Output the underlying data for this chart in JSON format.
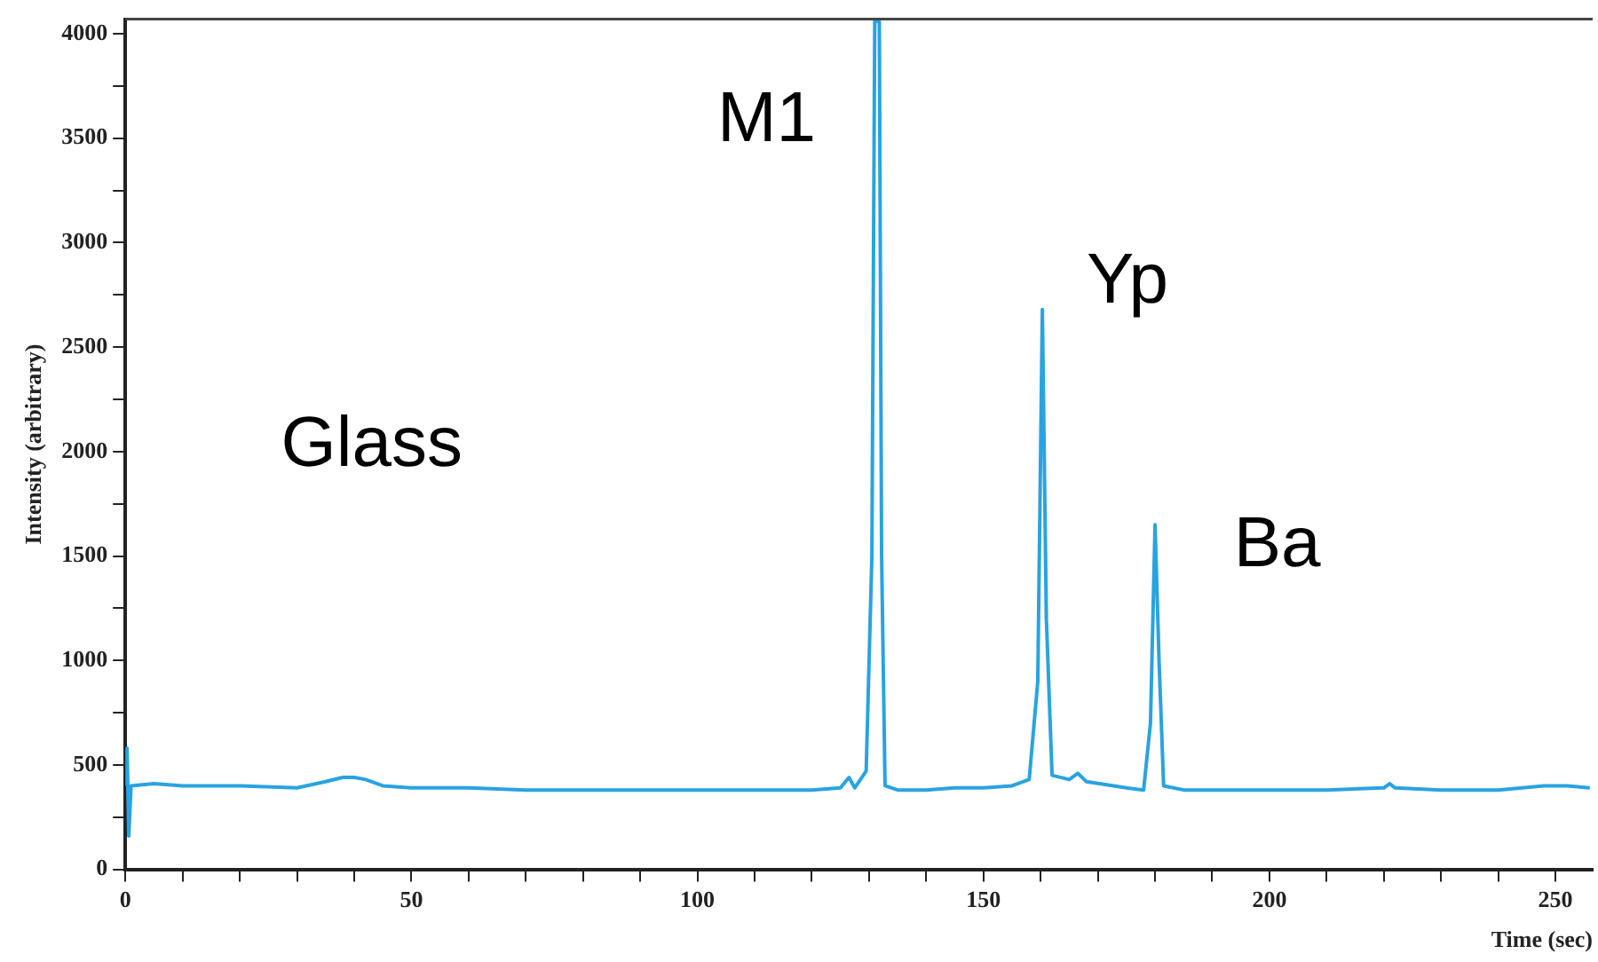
{
  "chart_data": {
    "type": "line",
    "xlabel": "Time (sec)",
    "ylabel": "Intensity (arbitrary)",
    "xlim": [
      0,
      256.5
    ],
    "ylim": [
      0,
      4070
    ],
    "xticks": [
      0,
      {
        "value": 10,
        "label": null
      },
      {
        "value": 20,
        "label": null
      },
      {
        "value": 30,
        "label": null
      },
      {
        "value": 40,
        "label": null
      },
      50,
      {
        "value": 60,
        "label": null
      },
      {
        "value": 70,
        "label": null
      },
      {
        "value": 80,
        "label": null
      },
      {
        "value": 90,
        "label": null
      },
      100,
      {
        "value": 110,
        "label": null
      },
      {
        "value": 120,
        "label": null
      },
      {
        "value": 130,
        "label": null
      },
      {
        "value": 140,
        "label": null
      },
      150,
      {
        "value": 160,
        "label": null
      },
      {
        "value": 170,
        "label": null
      },
      {
        "value": 180,
        "label": null
      },
      {
        "value": 190,
        "label": null
      },
      200,
      {
        "value": 210,
        "label": null
      },
      {
        "value": 220,
        "label": null
      },
      {
        "value": 230,
        "label": null
      },
      {
        "value": 240,
        "label": null
      },
      250
    ],
    "yticks": [
      0,
      {
        "value": 250,
        "label": null
      },
      500,
      {
        "value": 750,
        "label": null
      },
      1000,
      {
        "value": 1250,
        "label": null
      },
      1500,
      {
        "value": 1750,
        "label": null
      },
      2000,
      {
        "value": 2250,
        "label": null
      },
      2500,
      {
        "value": 2750,
        "label": null
      },
      3000,
      {
        "value": 3250,
        "label": null
      },
      3500,
      {
        "value": 3750,
        "label": null
      },
      4000
    ],
    "grid": false,
    "legend": false,
    "marker": "none",
    "line_style": "solid",
    "series": [
      {
        "color": "#29a3e0",
        "x": [
          0,
          0.3,
          0.6,
          1,
          5,
          10,
          20,
          30,
          35,
          38,
          40,
          42,
          45,
          50,
          60,
          70,
          80,
          90,
          100,
          110,
          120,
          125,
          126.5,
          127.5,
          128.5,
          129.5,
          130.5,
          131,
          131.8,
          132.2,
          132.8,
          135,
          140,
          145,
          150,
          155,
          158,
          159.5,
          160.3,
          161,
          162,
          165,
          166.5,
          168,
          175,
          178,
          179.2,
          180,
          180.7,
          181.5,
          185,
          200,
          210,
          220,
          221,
          222,
          230,
          240,
          248,
          252,
          256
        ],
        "values": [
          400,
          580,
          160,
          400,
          410,
          400,
          400,
          390,
          420,
          440,
          440,
          430,
          400,
          390,
          390,
          380,
          380,
          380,
          380,
          380,
          380,
          390,
          440,
          390,
          430,
          470,
          1500,
          4060,
          4060,
          1500,
          400,
          380,
          380,
          390,
          390,
          400,
          430,
          900,
          2680,
          1200,
          450,
          430,
          460,
          420,
          390,
          380,
          700,
          1650,
          1000,
          400,
          380,
          380,
          380,
          390,
          410,
          390,
          380,
          380,
          400,
          400,
          390
        ]
      }
    ],
    "annotations": [
      "Glass",
      "M1",
      "Yp",
      "Ba"
    ]
  }
}
